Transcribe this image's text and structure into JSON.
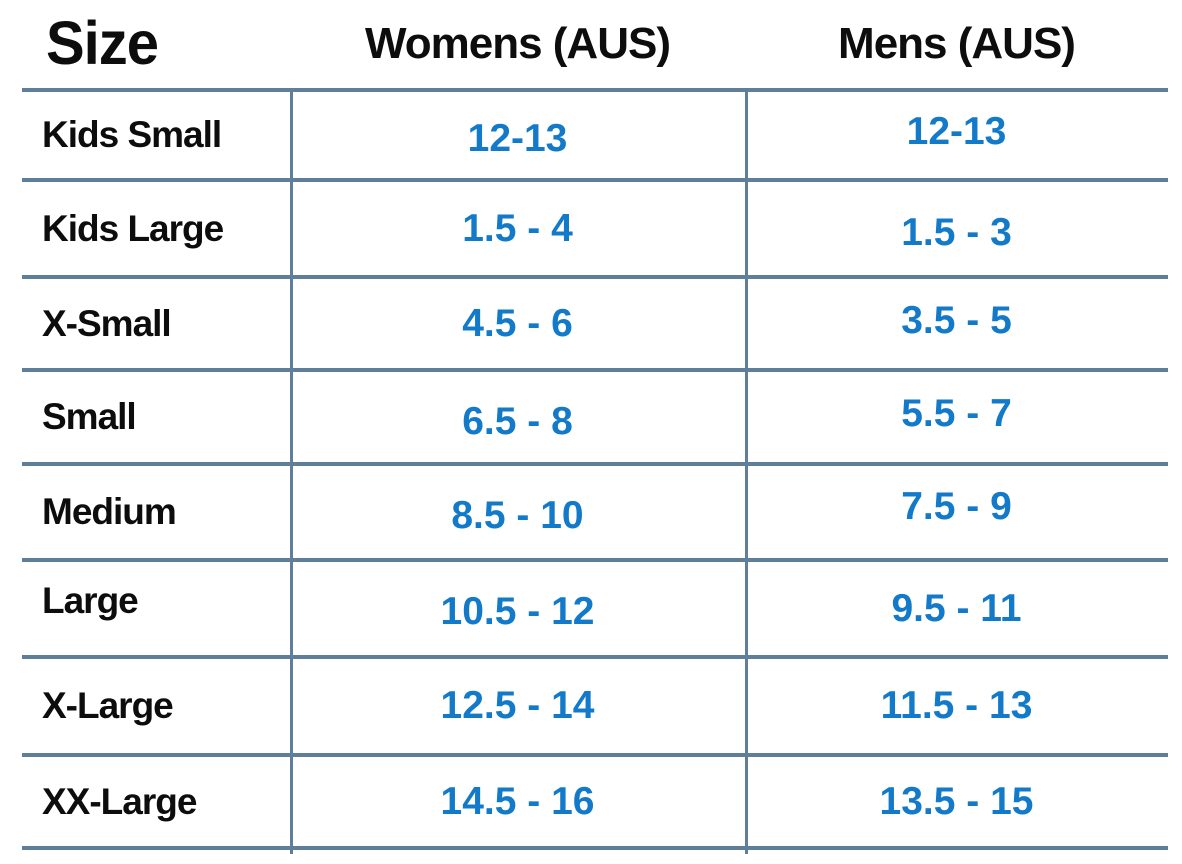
{
  "table": {
    "columns": [
      {
        "label": "Size"
      },
      {
        "label": "Womens (AUS)"
      },
      {
        "label": "Mens (AUS)"
      }
    ],
    "rows": [
      {
        "size": "Kids Small",
        "womens": "12-13",
        "mens": "12-13"
      },
      {
        "size": "Kids Large",
        "womens": "1.5 - 4",
        "mens": "1.5 - 3"
      },
      {
        "size": "X-Small",
        "womens": "4.5 - 6",
        "mens": "3.5 - 5"
      },
      {
        "size": "Small",
        "womens": "6.5 - 8",
        "mens": "5.5 - 7"
      },
      {
        "size": "Medium",
        "womens": "8.5 - 10",
        "mens": "7.5 - 9"
      },
      {
        "size": "Large",
        "womens": "10.5 - 12",
        "mens": "9.5 - 11"
      },
      {
        "size": "X-Large",
        "womens": "12.5 - 14",
        "mens": "11.5 - 13"
      },
      {
        "size": "XX-Large",
        "womens": "14.5 - 16",
        "mens": "13.5 - 15"
      }
    ],
    "colors": {
      "value_text": "#137ac9",
      "label_text": "#0d0d0d",
      "grid_line": "#5f7e99",
      "background": "#ffffff"
    }
  }
}
